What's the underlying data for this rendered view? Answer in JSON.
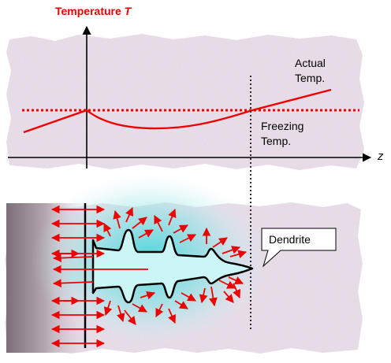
{
  "graph": {
    "y_axis_label": "Temperature",
    "y_axis_symbol": "T",
    "x_axis_label": "z",
    "actual_label_line1": "Actual",
    "actual_label_line2": "Temp.",
    "freezing_label_line1": "Freezing",
    "freezing_label_line2": "Temp."
  },
  "schematic": {
    "callout_label": "Dendrite"
  },
  "colors": {
    "red": "#ee0000",
    "axis": "#000000",
    "texture_light": "#f4eef4",
    "texture_dark": "#cdbfd0",
    "liquid_highlight": "#3fd4d8",
    "solid_side": "#7d6f79"
  }
}
